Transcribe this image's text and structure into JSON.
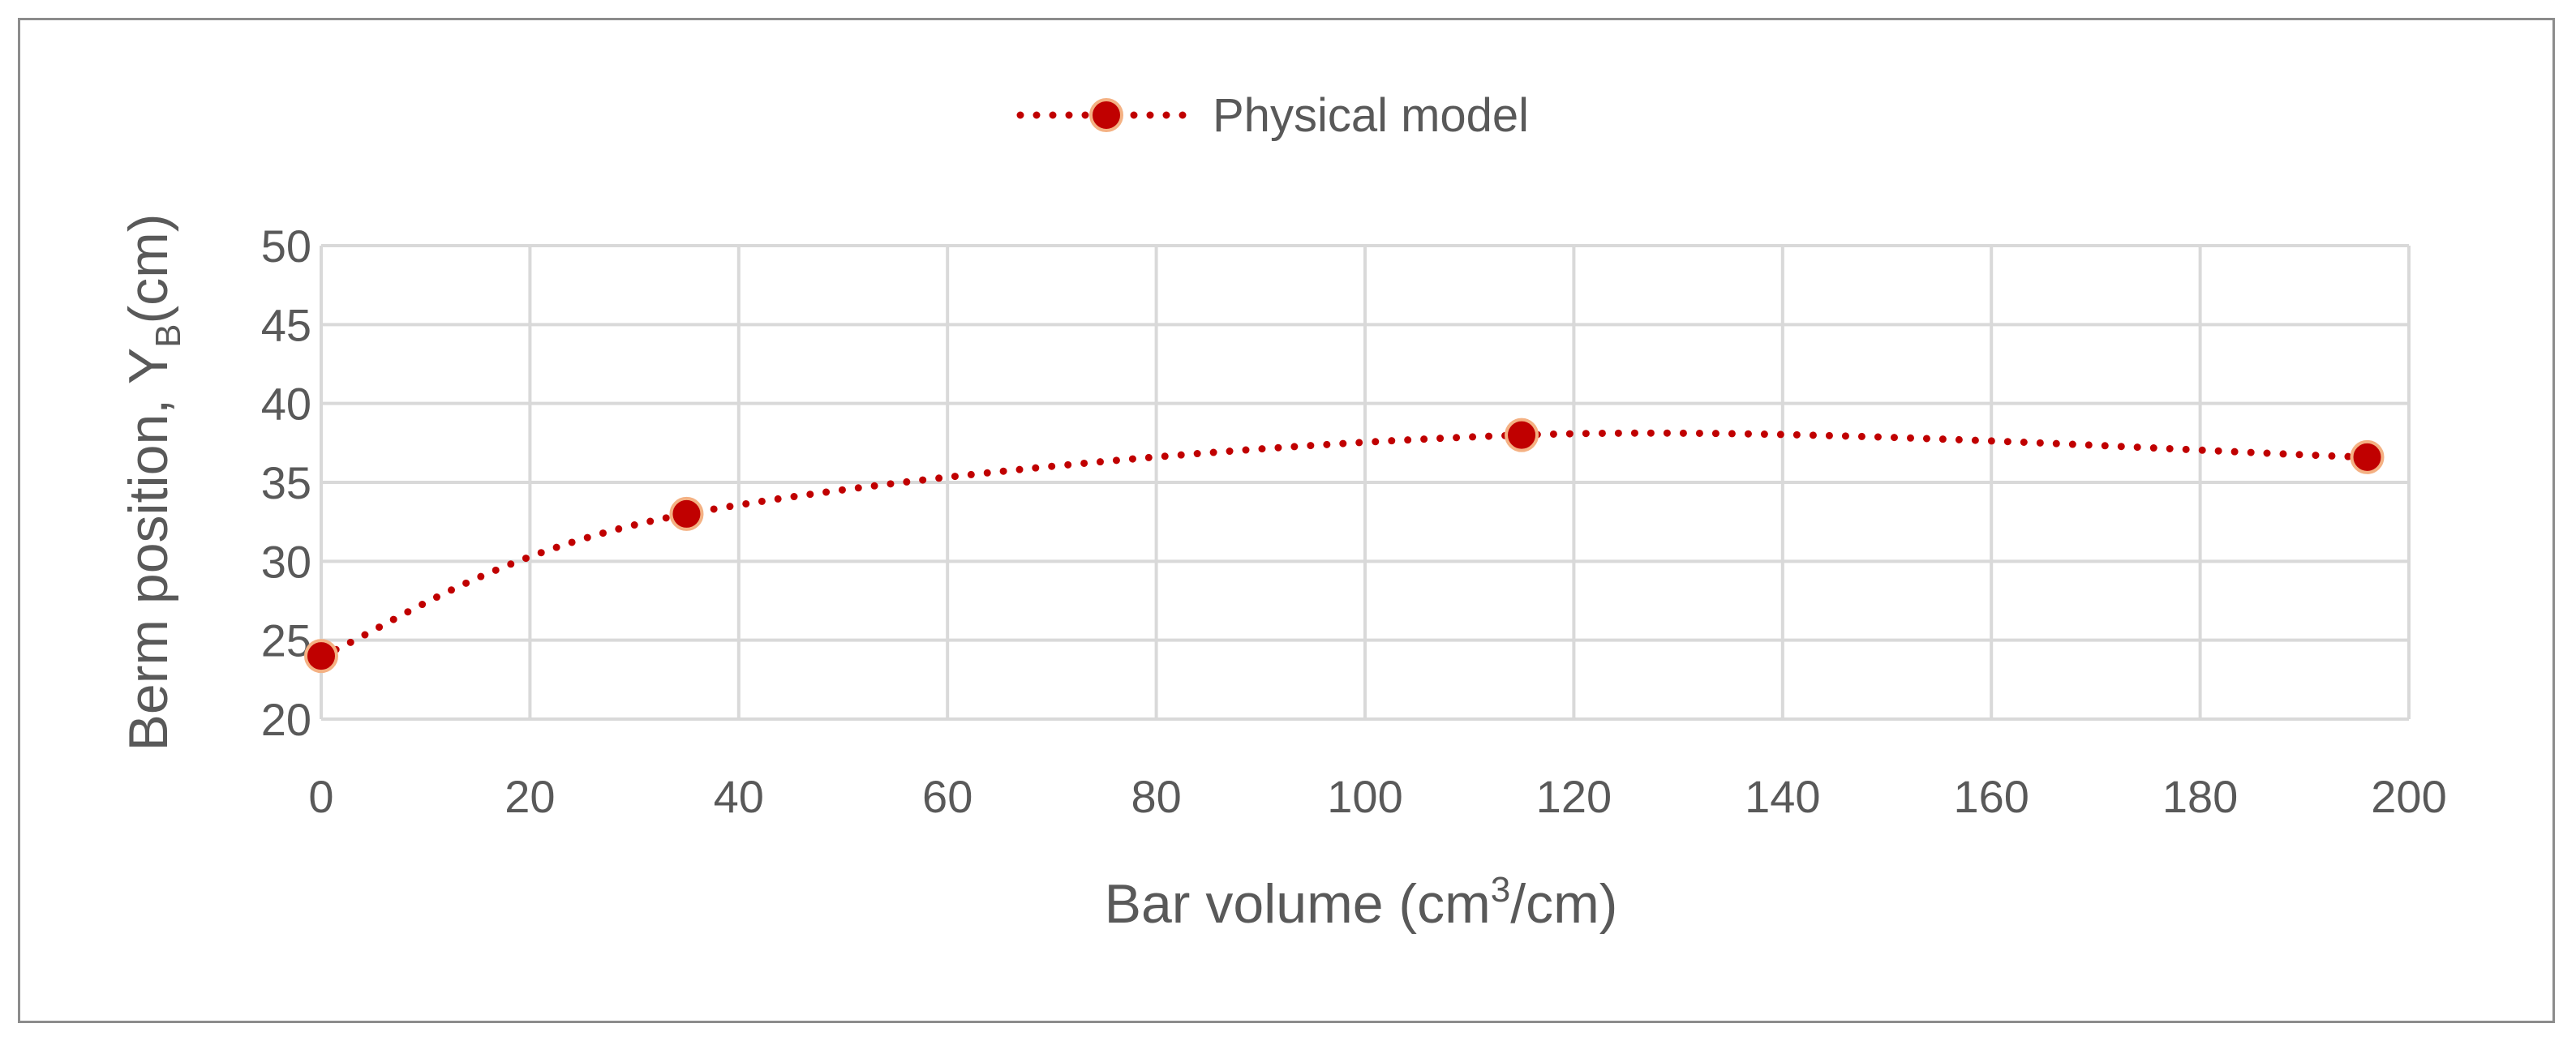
{
  "chart_data": {
    "type": "line",
    "legend_position": "top",
    "grid": true,
    "x": [
      0,
      35,
      115,
      196
    ],
    "series": [
      {
        "name": "Physical model",
        "values": [
          24,
          33,
          38,
          36.6
        ],
        "color": "#c00000",
        "marker_edge": "#f4b183",
        "line_style": "dotted",
        "smoothed": true
      }
    ],
    "xlim": [
      0,
      200
    ],
    "ylim": [
      20,
      50
    ],
    "xticks": [
      0,
      20,
      40,
      60,
      80,
      100,
      120,
      140,
      160,
      180,
      200
    ],
    "yticks": [
      20,
      25,
      30,
      35,
      40,
      45,
      50
    ],
    "xlabel": {
      "before": "Bar volume (cm",
      "sup": "3",
      "after": "/cm)"
    },
    "ylabel": {
      "before": "Berm position, Y",
      "sub": "B",
      "after": "(cm)"
    }
  },
  "colors": {
    "grid": "#d9d9d9",
    "text": "#595959",
    "frame": "#8c8c8c"
  }
}
